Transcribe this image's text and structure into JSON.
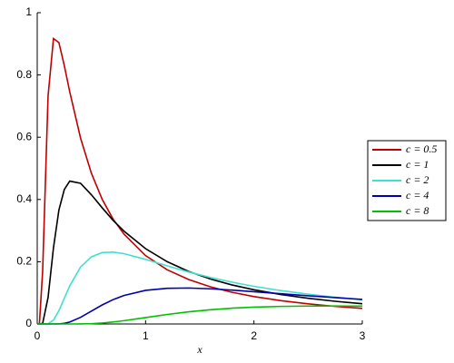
{
  "chart_data": {
    "type": "line",
    "x_label": "x",
    "x": [
      0,
      0.02,
      0.05,
      0.1,
      0.15,
      0.2,
      0.25,
      0.3,
      0.4,
      0.5,
      0.6,
      0.7,
      0.8,
      1,
      1.2,
      1.4,
      1.6,
      1.8,
      2,
      2.25,
      2.5,
      2.75,
      3
    ],
    "series": [
      {
        "name": "c = 0.5",
        "color": "#c00000",
        "values": [
          0,
          0.0004,
          0.17,
          0.732,
          0.917,
          0.904,
          0.83,
          0.746,
          0.597,
          0.484,
          0.4,
          0.337,
          0.289,
          0.2197,
          0.174,
          0.1425,
          0.1192,
          0.1017,
          0.088,
          0.0748,
          0.0646,
          0.0565,
          0.05
        ]
      },
      {
        "name": "c = 1",
        "color": "#000000",
        "values": [
          0,
          0,
          0.0016,
          0.085,
          0.245,
          0.366,
          0.432,
          0.459,
          0.452,
          0.415,
          0.373,
          0.333,
          0.2985,
          0.2419,
          0.2,
          0.1685,
          0.1442,
          0.1251,
          0.1098,
          0.0946,
          0.0826,
          0.0729,
          0.065
        ]
      },
      {
        "name": "c = 2",
        "color": "#40e0d0",
        "values": [
          0,
          0,
          0,
          0.0008,
          0.0123,
          0.0425,
          0.0827,
          0.1225,
          0.1831,
          0.2159,
          0.2294,
          0.2309,
          0.226,
          0.2076,
          0.1865,
          0.1667,
          0.1492,
          0.1341,
          0.121,
          0.1072,
          0.0957,
          0.086,
          0.0778
        ]
      },
      {
        "name": "c = 4",
        "color": "#0000b0",
        "values": [
          0,
          0,
          0,
          0,
          0,
          0.0004,
          0.0021,
          0.0062,
          0.0213,
          0.0413,
          0.0612,
          0.0782,
          0.0916,
          0.108,
          0.1147,
          0.1155,
          0.113,
          0.1088,
          0.1038,
          0.0972,
          0.0907,
          0.0846,
          0.0789
        ]
      },
      {
        "name": "c = 8",
        "color": "#00c000",
        "values": [
          0,
          0,
          0,
          0,
          0,
          0,
          0,
          0,
          0.0002,
          0.0011,
          0.0031,
          0.0064,
          0.0106,
          0.0207,
          0.0306,
          0.0391,
          0.0458,
          0.0507,
          0.054,
          0.0565,
          0.0576,
          0.0578,
          0.0573
        ]
      }
    ],
    "xlim": [
      0,
      3
    ],
    "ylim": [
      0,
      1
    ],
    "xticks": [
      0,
      1,
      2,
      3
    ],
    "yticks": [
      0,
      0.2,
      0.4,
      0.6,
      0.8,
      1
    ],
    "legend": "right"
  }
}
